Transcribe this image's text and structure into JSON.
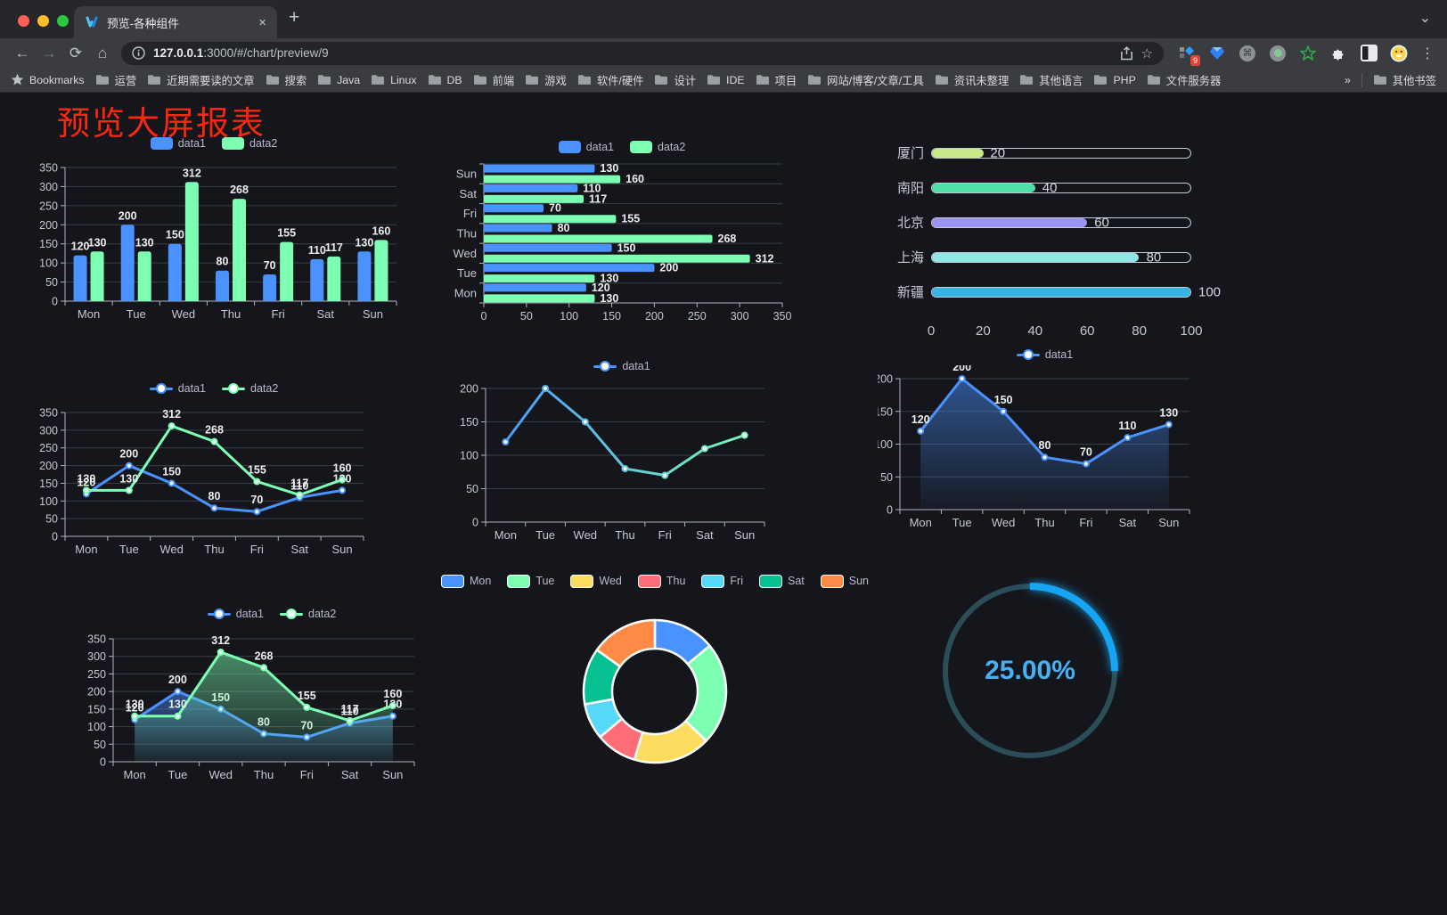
{
  "browser": {
    "tab_title": "预览-各种组件",
    "url_host": "127.0.0.1",
    "url_rest": ":3000/#/chart/preview/9",
    "bookmarks_label": "Bookmarks",
    "bookmarks": [
      "运营",
      "近期需要读的文章",
      "搜索",
      "Java",
      "Linux",
      "DB",
      "前端",
      "游戏",
      "软件/硬件",
      "设计",
      "IDE",
      "项目",
      "网站/博客/文章/工具",
      "资讯未整理",
      "其他语言",
      "PHP",
      "文件服务器"
    ],
    "bookmarks_overflow": "»",
    "other_bookmarks": "其他书签",
    "extension_badge": "9",
    "icons": {
      "close": "×",
      "new_tab": "+",
      "tab_search": "⌄",
      "back": "←",
      "forward": "→",
      "reload": "⟳",
      "home": "⌂",
      "star": "☆",
      "menu": "⋮",
      "command": "⌘"
    }
  },
  "page": {
    "title": "预览大屏报表"
  },
  "chart_data": [
    {
      "id": "bar-vertical",
      "type": "bar",
      "categories": [
        "Mon",
        "Tue",
        "Wed",
        "Thu",
        "Fri",
        "Sat",
        "Sun"
      ],
      "series": [
        {
          "name": "data1",
          "color": "#4992ff",
          "values": [
            120,
            200,
            150,
            80,
            70,
            110,
            130
          ]
        },
        {
          "name": "data2",
          "color": "#7cffb2",
          "values": [
            130,
            130,
            312,
            268,
            155,
            117,
            160
          ]
        }
      ],
      "ylim": [
        0,
        350
      ],
      "ytick_step": 50,
      "show_labels": true,
      "legend_position": "top"
    },
    {
      "id": "bar-horizontal",
      "type": "bar-horizontal",
      "categories": [
        "Mon",
        "Tue",
        "Wed",
        "Thu",
        "Fri",
        "Sat",
        "Sun"
      ],
      "category_order_top_to_bottom": [
        "Sun",
        "Sat",
        "Fri",
        "Thu",
        "Wed",
        "Tue",
        "Mon"
      ],
      "series": [
        {
          "name": "data1",
          "color": "#4992ff",
          "values": [
            120,
            200,
            150,
            80,
            70,
            110,
            130
          ]
        },
        {
          "name": "data2",
          "color": "#7cffb2",
          "values": [
            130,
            130,
            312,
            268,
            155,
            117,
            160
          ]
        }
      ],
      "xlim": [
        0,
        350
      ],
      "xtick_step": 50,
      "show_labels": true,
      "legend_position": "top"
    },
    {
      "id": "city-progress",
      "type": "progress",
      "max": 100,
      "axis_ticks": [
        0,
        20,
        40,
        60,
        80,
        100
      ],
      "items": [
        {
          "label": "厦门",
          "value": 20,
          "color": "#c8e98a"
        },
        {
          "label": "南阳",
          "value": 40,
          "color": "#4ee0a6"
        },
        {
          "label": "北京",
          "value": 60,
          "color": "#9a93f2"
        },
        {
          "label": "上海",
          "value": 80,
          "color": "#8fe7e6"
        },
        {
          "label": "新疆",
          "value": 100,
          "color": "#36b4e8"
        }
      ]
    },
    {
      "id": "line-two-series",
      "type": "line",
      "categories": [
        "Mon",
        "Tue",
        "Wed",
        "Thu",
        "Fri",
        "Sat",
        "Sun"
      ],
      "series": [
        {
          "name": "data1",
          "color": "#4992ff",
          "values": [
            120,
            200,
            150,
            80,
            70,
            110,
            130
          ]
        },
        {
          "name": "data2",
          "color": "#7cffb2",
          "values": [
            130,
            130,
            312,
            268,
            155,
            117,
            160
          ]
        }
      ],
      "ylim": [
        0,
        350
      ],
      "ytick_step": 50,
      "show_labels": true,
      "legend_position": "top"
    },
    {
      "id": "line-gradient",
      "type": "line",
      "categories": [
        "Mon",
        "Tue",
        "Wed",
        "Thu",
        "Fri",
        "Sat",
        "Sun"
      ],
      "series": [
        {
          "name": "data1",
          "color": "#4992ff",
          "gradient": [
            "#4992ff",
            "#7cffb2"
          ],
          "values": [
            120,
            200,
            150,
            80,
            70,
            110,
            130
          ]
        }
      ],
      "ylim": [
        0,
        200
      ],
      "ytick_step": 50,
      "show_labels": false,
      "legend_position": "top"
    },
    {
      "id": "area-single",
      "type": "line",
      "categories": [
        "Mon",
        "Tue",
        "Wed",
        "Thu",
        "Fri",
        "Sat",
        "Sun"
      ],
      "series": [
        {
          "name": "data1",
          "color": "#4992ff",
          "area": true,
          "values": [
            120,
            200,
            150,
            80,
            70,
            110,
            130
          ]
        }
      ],
      "ylim": [
        0,
        200
      ],
      "ytick_step": 50,
      "show_labels": true,
      "legend_position": "top"
    },
    {
      "id": "line-area-two",
      "type": "line",
      "categories": [
        "Mon",
        "Tue",
        "Wed",
        "Thu",
        "Fri",
        "Sat",
        "Sun"
      ],
      "series": [
        {
          "name": "data1",
          "color": "#4992ff",
          "area": true,
          "values": [
            120,
            200,
            150,
            80,
            70,
            110,
            130
          ]
        },
        {
          "name": "data2",
          "color": "#7cffb2",
          "area": true,
          "values": [
            130,
            130,
            312,
            268,
            155,
            117,
            160
          ]
        }
      ],
      "ylim": [
        0,
        350
      ],
      "ytick_step": 50,
      "show_labels": true,
      "legend_position": "top"
    },
    {
      "id": "weekday-donut",
      "type": "pie",
      "labels": [
        "Mon",
        "Tue",
        "Wed",
        "Thu",
        "Fri",
        "Sat",
        "Sun"
      ],
      "values": [
        120,
        200,
        150,
        80,
        70,
        110,
        130
      ],
      "colors": [
        "#4992ff",
        "#7cffb2",
        "#fddd60",
        "#ff6e76",
        "#58d9f9",
        "#05c091",
        "#ff8a45"
      ],
      "inner_radius_ratio": 0.6,
      "border_color": "#ffffff",
      "legend_position": "top"
    },
    {
      "id": "percent-gauge",
      "type": "gauge",
      "value": 25,
      "display": "25.00%",
      "color": "#18a5f3",
      "track_color": "#2a4d58"
    }
  ]
}
